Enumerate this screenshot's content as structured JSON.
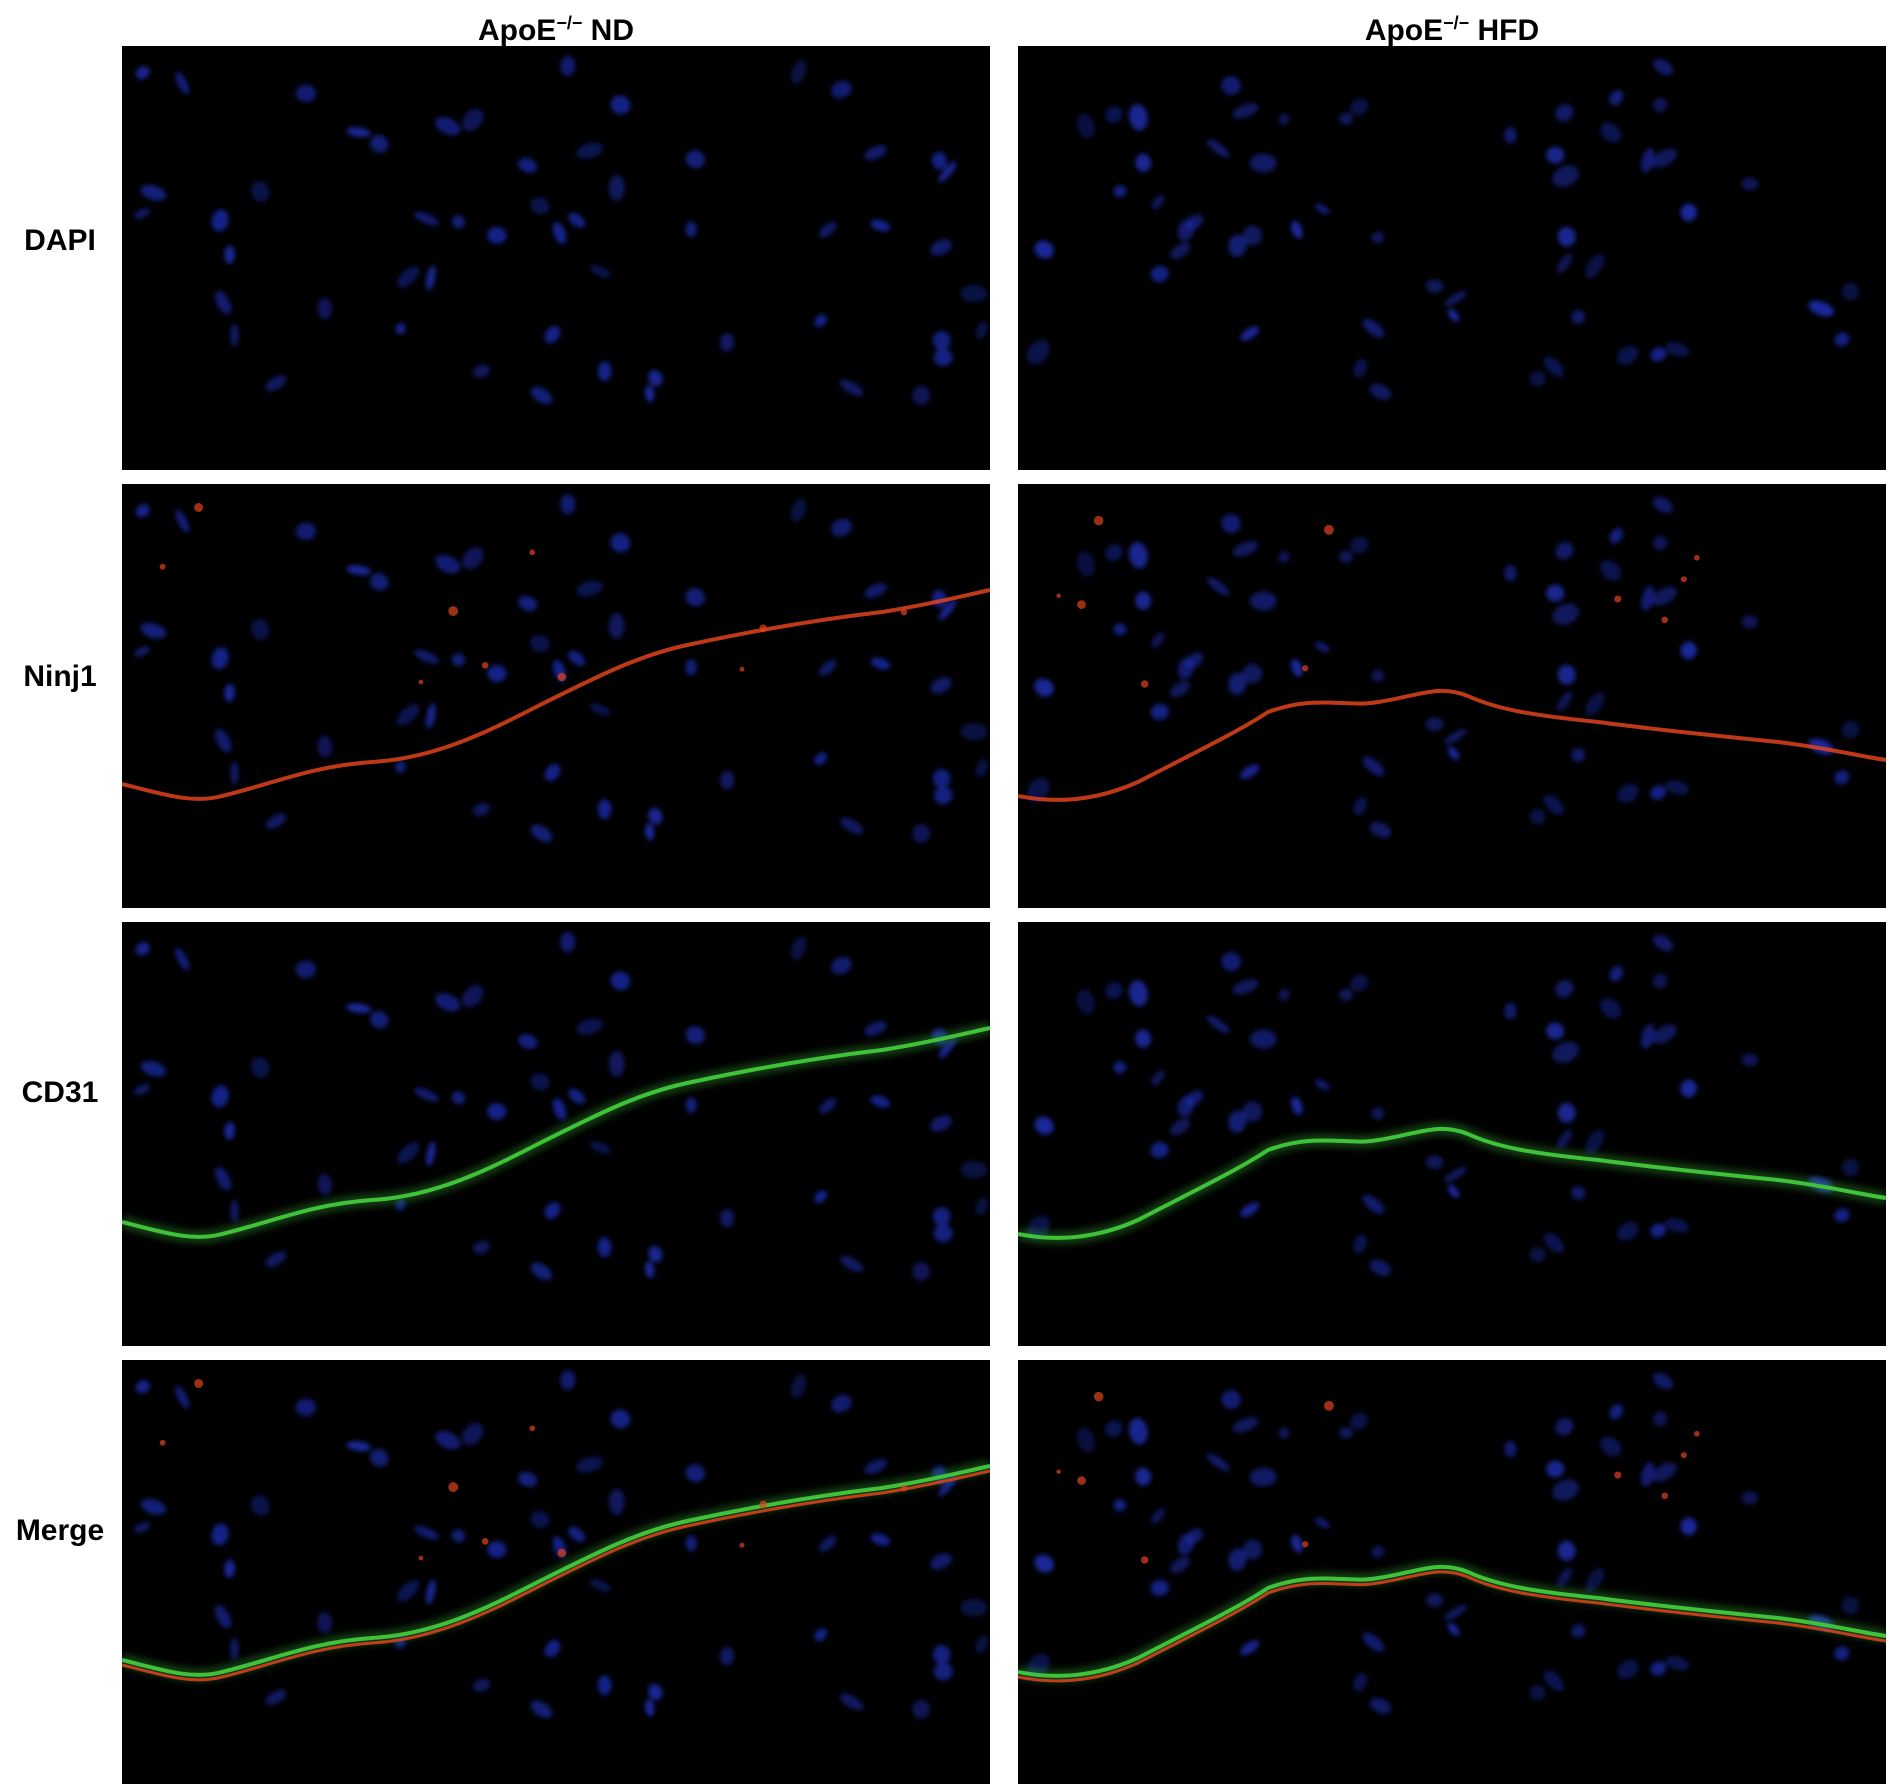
{
  "columns": [
    {
      "title_base": "ApoE",
      "title_sup": "−/−",
      "title_tail": " ND"
    },
    {
      "title_base": "ApoE",
      "title_sup": "−/−",
      "title_tail": " HFD"
    }
  ],
  "rows": [
    {
      "label": "DAPI",
      "channels": [
        "blue"
      ]
    },
    {
      "label": "Ninj1",
      "channels": [
        "blue",
        "red"
      ]
    },
    {
      "label": "CD31",
      "channels": [
        "blue",
        "green"
      ]
    },
    {
      "label": "Merge",
      "channels": [
        "blue",
        "red",
        "green"
      ]
    }
  ],
  "colors": {
    "background": "#000000",
    "nuclei_blue": "#1e2fb8",
    "ninj1_red": "#e0431c",
    "cd31_green": "#3fc23a"
  }
}
